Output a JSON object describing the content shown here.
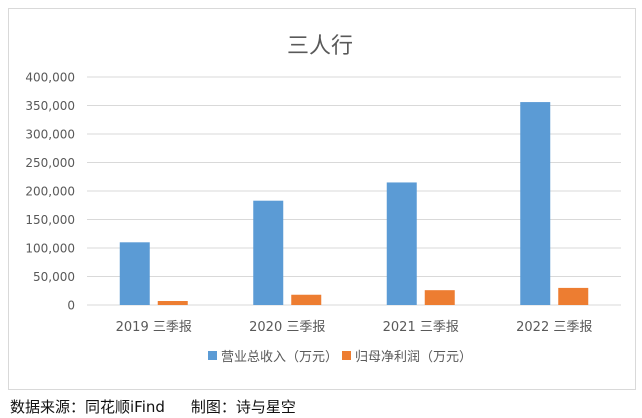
{
  "chart_data": {
    "type": "bar",
    "title": "三人行",
    "categories": [
      "2019 三季报",
      "2020 三季报",
      "2021 三季报",
      "2022 三季报"
    ],
    "series": [
      {
        "name": "营业总收入（万元）",
        "values": [
          110000,
          183000,
          215000,
          356000
        ]
      },
      {
        "name": "归母净利润（万元）",
        "values": [
          7000,
          18000,
          26000,
          30000
        ]
      }
    ],
    "ylim": [
      0,
      400000
    ],
    "yticks": [
      "0",
      "50,000",
      "100,000",
      "150,000",
      "200,000",
      "250,000",
      "300,000",
      "350,000",
      "400,000"
    ],
    "ytick_values": [
      0,
      50000,
      100000,
      150000,
      200000,
      250000,
      300000,
      350000,
      400000
    ],
    "grid": true,
    "legend_position": "bottom",
    "colors": [
      "#5b9bd5",
      "#ed7d31"
    ]
  },
  "source_note": {
    "source": "数据来源：同花顺iFind",
    "credit": "制图：诗与星空"
  }
}
